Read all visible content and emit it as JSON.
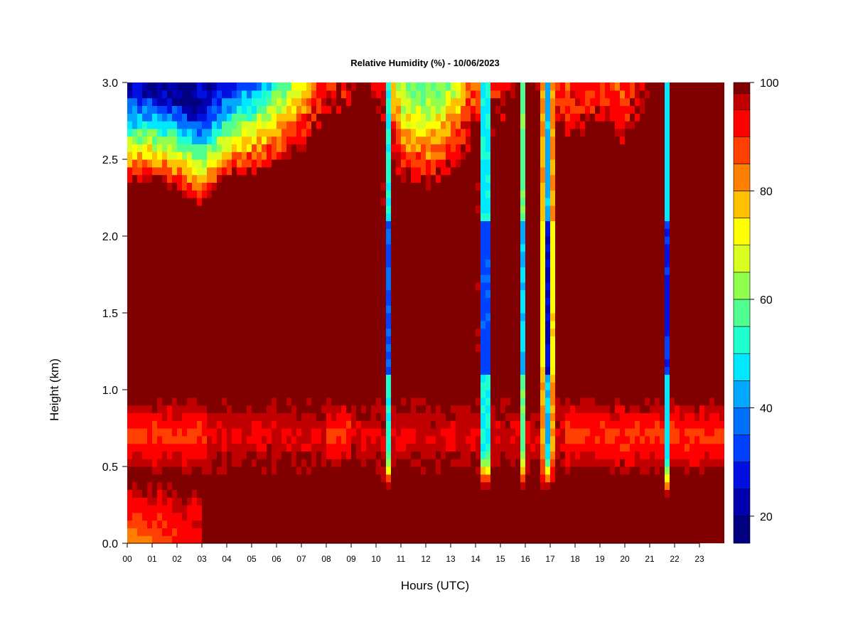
{
  "chart_data": {
    "type": "heatmap",
    "title": "Relative Humidity (%) - 10/06/2023",
    "xlabel": "Hours (UTC)",
    "ylabel": "Height (km)",
    "xlim": [
      0,
      24
    ],
    "ylim": [
      0,
      3
    ],
    "x_ticks": [
      "00",
      "01",
      "02",
      "03",
      "04",
      "05",
      "06",
      "07",
      "08",
      "09",
      "10",
      "11",
      "12",
      "13",
      "14",
      "15",
      "16",
      "17",
      "18",
      "19",
      "20",
      "21",
      "22",
      "23"
    ],
    "y_ticks": [
      "0.0",
      "0.5",
      "1.0",
      "1.5",
      "2.0",
      "2.5",
      "3.0"
    ],
    "colorbar": {
      "range": [
        15,
        100
      ],
      "tick_values": [
        20,
        40,
        60,
        80,
        100
      ],
      "tick_labels": [
        "20",
        "40",
        "60",
        "80",
        "100"
      ],
      "levels": [
        {
          "from": 15,
          "to": 20,
          "color": "#000080"
        },
        {
          "from": 20,
          "to": 25,
          "color": "#0000b0"
        },
        {
          "from": 25,
          "to": 30,
          "color": "#0010e0"
        },
        {
          "from": 30,
          "to": 35,
          "color": "#0040ff"
        },
        {
          "from": 35,
          "to": 40,
          "color": "#0070ff"
        },
        {
          "from": 40,
          "to": 45,
          "color": "#00a8ff"
        },
        {
          "from": 45,
          "to": 50,
          "color": "#00e8ff"
        },
        {
          "from": 50,
          "to": 55,
          "color": "#20ffd0"
        },
        {
          "from": 55,
          "to": 60,
          "color": "#50ff90"
        },
        {
          "from": 60,
          "to": 65,
          "color": "#90ff50"
        },
        {
          "from": 65,
          "to": 70,
          "color": "#d8ff20"
        },
        {
          "from": 70,
          "to": 75,
          "color": "#ffff00"
        },
        {
          "from": 75,
          "to": 80,
          "color": "#ffc000"
        },
        {
          "from": 80,
          "to": 85,
          "color": "#ff8000"
        },
        {
          "from": 85,
          "to": 90,
          "color": "#ff4000"
        },
        {
          "from": 90,
          "to": 95,
          "color": "#ff0000"
        },
        {
          "from": 95,
          "to": 98,
          "color": "#c00000"
        },
        {
          "from": 98,
          "to": 100,
          "color": "#800000"
        }
      ]
    },
    "features": {
      "dry_layer_top": [
        {
          "hour": 0,
          "base_km": 2.35,
          "min_rh": 22
        },
        {
          "hour": 1,
          "base_km": 2.35,
          "min_rh": 20
        },
        {
          "hour": 2,
          "base_km": 2.3,
          "min_rh": 19
        },
        {
          "hour": 3,
          "base_km": 2.2,
          "min_rh": 22
        },
        {
          "hour": 4,
          "base_km": 2.35,
          "min_rh": 28
        },
        {
          "hour": 5,
          "base_km": 2.4,
          "min_rh": 35
        },
        {
          "hour": 6,
          "base_km": 2.45,
          "min_rh": 45
        },
        {
          "hour": 7,
          "base_km": 2.55,
          "min_rh": 60
        },
        {
          "hour": 8,
          "base_km": 2.75,
          "min_rh": 75
        },
        {
          "hour": 9,
          "base_km": 2.8,
          "min_rh": 80
        },
        {
          "hour": 9.5,
          "base_km": 3.1,
          "min_rh": 100
        },
        {
          "hour": 11,
          "base_km": 2.35,
          "min_rh": 62
        },
        {
          "hour": 12,
          "base_km": 2.3,
          "min_rh": 58
        },
        {
          "hour": 13,
          "base_km": 2.4,
          "min_rh": 62
        },
        {
          "hour": 14,
          "base_km": 2.6,
          "min_rh": 80
        },
        {
          "hour": 15,
          "base_km": 2.7,
          "min_rh": 82
        },
        {
          "hour": 16,
          "base_km": 3.1,
          "min_rh": 100
        },
        {
          "hour": 17.5,
          "base_km": 2.6,
          "min_rh": 80
        },
        {
          "hour": 19,
          "base_km": 2.7,
          "min_rh": 80
        },
        {
          "hour": 20,
          "base_km": 2.6,
          "min_rh": 78
        },
        {
          "hour": 21,
          "base_km": 2.9,
          "min_rh": 85
        },
        {
          "hour": 21.8,
          "base_km": 3.1,
          "min_rh": 100
        },
        {
          "hour": 24,
          "base_km": 3.1,
          "min_rh": 100
        }
      ],
      "dry_columns": [
        {
          "hour": 10.5,
          "half_width_h": 0.2,
          "min_rh": 35,
          "bottom_km": 0.35
        },
        {
          "hour": 14.4,
          "half_width_h": 0.3,
          "min_rh": 25,
          "bottom_km": 0.35
        },
        {
          "hour": 15.95,
          "half_width_h": 0.15,
          "min_rh": 38,
          "bottom_km": 0.35
        },
        {
          "hour": 16.9,
          "half_width_h": 0.25,
          "min_rh": 25,
          "bottom_km": 0.35
        },
        {
          "hour": 21.7,
          "half_width_h": 0.17,
          "min_rh": 30,
          "bottom_km": 0.3
        }
      ],
      "moist_band": {
        "bottom_km": 0.45,
        "top_km": 0.95,
        "min_rh": 88
      },
      "surface_patch": {
        "hour_end": 3,
        "top_km": 0.4,
        "min_rh": 80
      }
    }
  }
}
